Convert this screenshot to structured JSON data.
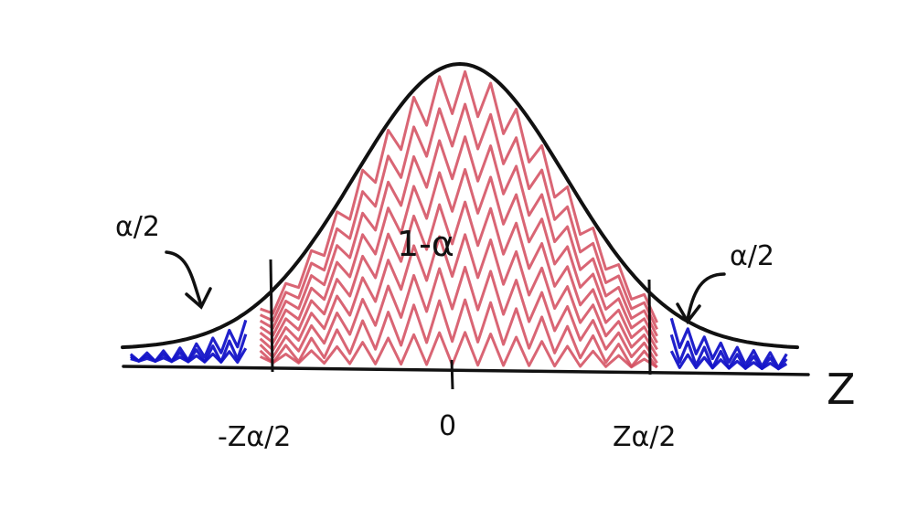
{
  "chart_data": {
    "type": "area",
    "title": "",
    "xlabel": "Z",
    "ylabel": "",
    "x_tick_labels": {
      "left_critical": "-Zα/2",
      "center": "0",
      "right_critical": "Zα/2"
    },
    "regions": {
      "center": {
        "label": "1-α",
        "color": "#d24a5c"
      },
      "left_tail": {
        "label": "α/2",
        "color": "#1414c8"
      },
      "right_tail": {
        "label": "α/2",
        "color": "#1414c8"
      }
    },
    "critical_z": 1.96,
    "x_range": [
      -3.2,
      3.2
    ]
  }
}
